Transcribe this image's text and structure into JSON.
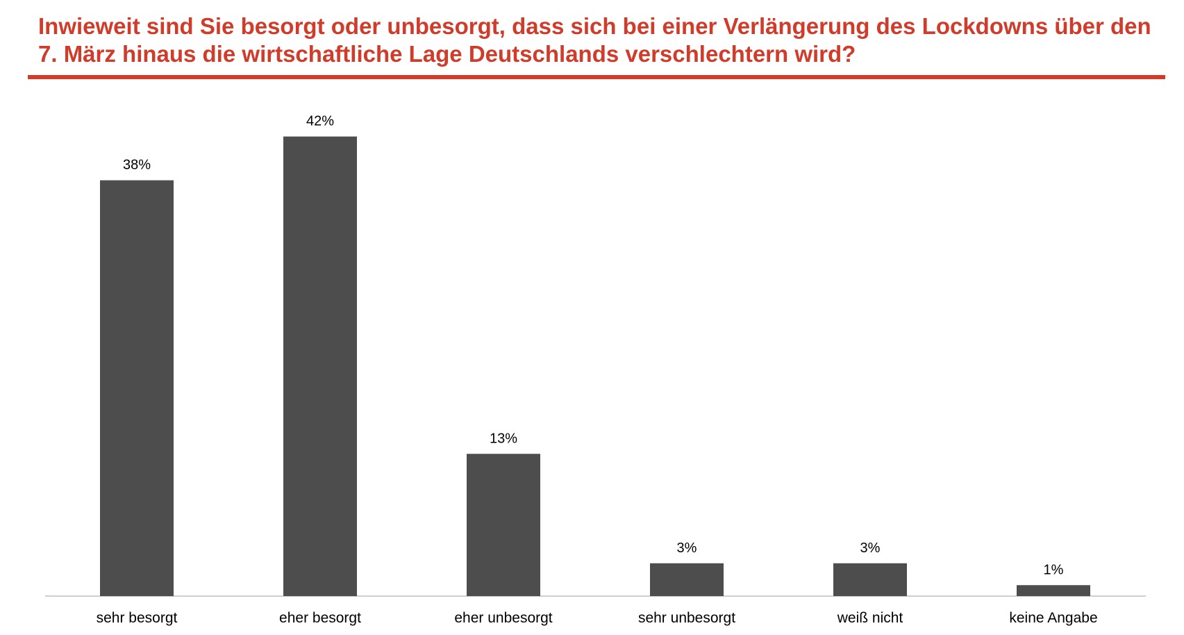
{
  "colors": {
    "title": "#d13b2a",
    "bar": "#4d4d4d",
    "axis": "#bfbfbf"
  },
  "chart_data": {
    "type": "bar",
    "title": "Inwieweit sind Sie besorgt oder unbesorgt, dass sich bei einer Verlängerung des Lockdowns über den 7. März hinaus die wirtschaftliche Lage Deutschlands verschlechtern wird?",
    "categories": [
      "sehr besorgt",
      "eher besorgt",
      "eher unbesorgt",
      "sehr unbesorgt",
      "weiß nicht",
      "keine Angabe"
    ],
    "values": [
      38,
      42,
      13,
      3,
      3,
      1
    ],
    "value_labels": [
      "38%",
      "42%",
      "13%",
      "3%",
      "3%",
      "1%"
    ],
    "unit": "%",
    "xlabel": "",
    "ylabel": "",
    "grid": false,
    "legend": "none"
  }
}
